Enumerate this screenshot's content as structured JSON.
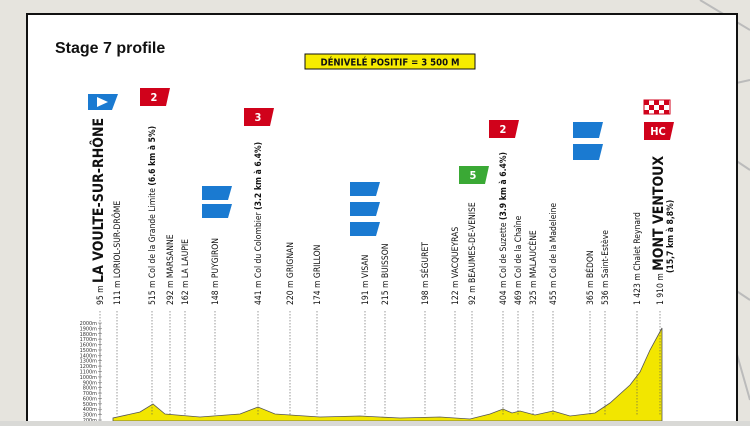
{
  "title": "Stage 7 profile",
  "badge": "DÉNIVELÉ POSITIF = 3 500 M",
  "markers": [
    "2",
    "3",
    "5",
    "2",
    "HC"
  ],
  "waypoints": [
    {
      "altitude": "95 m",
      "name": "LA VOULTE-SUR-RHÔNE"
    },
    {
      "altitude": "111 m",
      "name": "LORIOL-SUR-DRÔME"
    },
    {
      "altitude": "515 m",
      "name": "Col de la Grande Limite",
      "detail": "(6.6 km à 5%)"
    },
    {
      "altitude": "292 m",
      "name": "MARSANNE"
    },
    {
      "altitude": "162 m",
      "name": "LA LAUPIE"
    },
    {
      "altitude": "148 m",
      "name": "PUYGIRON"
    },
    {
      "altitude": "441 m",
      "name": "Col du Colombier",
      "detail": "(3.2 km à 6.4%)"
    },
    {
      "altitude": "220 m",
      "name": "GRIGNAN"
    },
    {
      "altitude": "174 m",
      "name": "GRILLON"
    },
    {
      "altitude": "191 m",
      "name": "VISAN"
    },
    {
      "altitude": "215 m",
      "name": "BUISSON"
    },
    {
      "altitude": "198 m",
      "name": "SÉGURET"
    },
    {
      "altitude": "122 m",
      "name": "VACQUEYRAS"
    },
    {
      "altitude": "92 m",
      "name": "BEAUMES-DE-VENISE"
    },
    {
      "altitude": "404 m",
      "name": "Col de Suzette",
      "detail": "(3.9 km à 6.4%)"
    },
    {
      "altitude": "469 m",
      "name": "Col de la Chaîne"
    },
    {
      "altitude": "325 m",
      "name": "MALAUCÈNE"
    },
    {
      "altitude": "455 m",
      "name": "Col de la Madeleine"
    },
    {
      "altitude": "365 m",
      "name": "BÉDON"
    },
    {
      "altitude": "536 m",
      "name": "Saint-Estève"
    },
    {
      "altitude": "1 423 m",
      "name": "Chalet Reynard"
    },
    {
      "altitude": "1 910 m",
      "name": "MONT VENTOUX",
      "detail": "(15,7 km à 8,8%)"
    }
  ],
  "elevation_labels": [
    "2000m",
    "1900m",
    "1800m",
    "1700m",
    "1600m",
    "1500m",
    "1400m",
    "1300m",
    "1200m",
    "1100m",
    "1000m",
    "900m",
    "800m",
    "700m",
    "600m",
    "500m",
    "400m",
    "300m",
    "200m"
  ]
}
